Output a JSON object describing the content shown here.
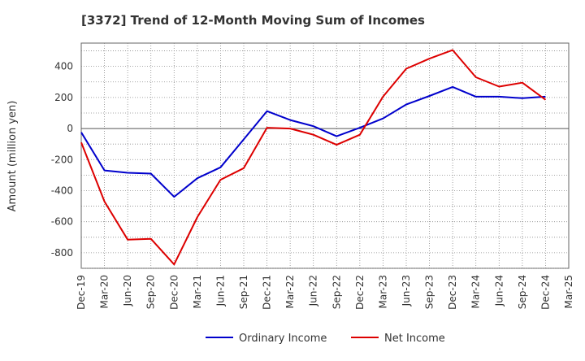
{
  "chart_data": {
    "type": "line",
    "title": "[3372]  Trend of 12-Month Moving Sum of Incomes",
    "xlabel": "",
    "ylabel": "Amount (million yen)",
    "ylim": [
      -900,
      550
    ],
    "yticks": [
      400,
      200,
      0,
      -200,
      -400,
      -600,
      -800
    ],
    "categories": [
      "Dec-19",
      "Mar-20",
      "Jun-20",
      "Sep-20",
      "Dec-20",
      "Mar-21",
      "Jun-21",
      "Sep-21",
      "Dec-21",
      "Mar-22",
      "Jun-22",
      "Sep-22",
      "Dec-22",
      "Mar-23",
      "Jun-23",
      "Sep-23",
      "Dec-23",
      "Mar-24",
      "Jun-24",
      "Sep-24",
      "Dec-24",
      "Mar-25"
    ],
    "grid": true,
    "legend_position": "bottom",
    "series": [
      {
        "name": "Ordinary Income",
        "color": "#0000cc",
        "values": [
          -25,
          -270,
          -285,
          -290,
          -440,
          -320,
          -250,
          -70,
          112,
          55,
          15,
          -50,
          5,
          65,
          155,
          210,
          268,
          205,
          205,
          195,
          205,
          null
        ]
      },
      {
        "name": "Net Income",
        "color": "#dd0000",
        "values": [
          -90,
          -470,
          -715,
          -710,
          -875,
          -570,
          -330,
          -255,
          5,
          0,
          -40,
          -105,
          -40,
          205,
          385,
          450,
          505,
          330,
          270,
          295,
          185,
          null
        ]
      }
    ]
  }
}
